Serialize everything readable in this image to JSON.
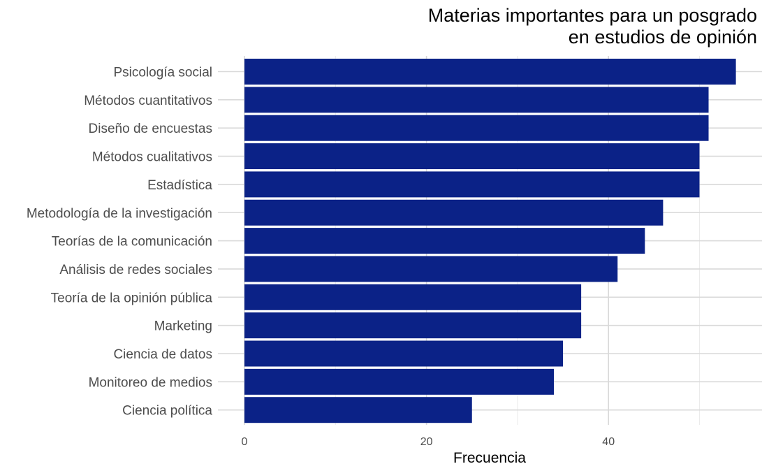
{
  "chart_data": {
    "type": "bar",
    "orientation": "horizontal",
    "title": [
      "Materias importantes para un posgrado",
      "en estudios de opinión"
    ],
    "xlabel": "Frecuencia",
    "ylabel": "",
    "xlim": [
      0,
      56
    ],
    "xticks": [
      0,
      20,
      40
    ],
    "grid": true,
    "bar_color": "#0b2287",
    "categories": [
      "Psicología social",
      "Métodos cuantitativos",
      "Diseño de encuestas",
      "Métodos cualitativos",
      "Estadística",
      "Metodología de la investigación",
      "Teorías de la comunicación",
      "Análisis de redes sociales",
      "Teoría de la opinión pública",
      "Marketing",
      "Ciencia de datos",
      "Monitoreo de medios",
      "Ciencia política"
    ],
    "values": [
      54,
      51,
      51,
      50,
      50,
      46,
      44,
      41,
      37,
      37,
      35,
      34,
      25
    ]
  }
}
